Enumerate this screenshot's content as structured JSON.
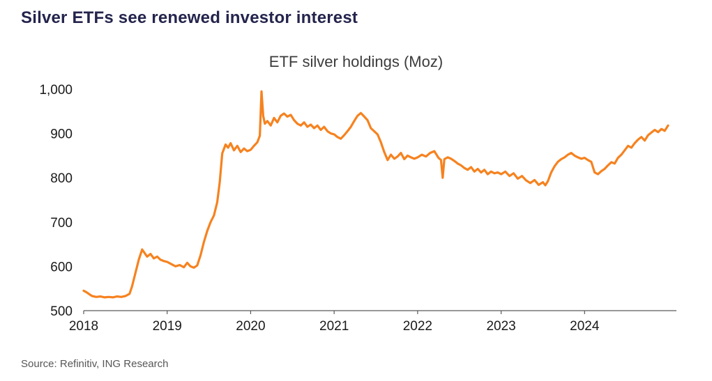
{
  "page": {
    "title": "Silver ETFs see renewed investor interest",
    "source": "Source: Refinitiv, ING Research"
  },
  "chart_data": {
    "type": "line",
    "title": "ETF silver holdings (Moz)",
    "xlabel": "",
    "ylabel": "",
    "xlim": [
      2018,
      2025.1
    ],
    "ylim": [
      500,
      1000
    ],
    "x_ticks": [
      2018,
      2019,
      2020,
      2021,
      2022,
      2023,
      2024
    ],
    "y_ticks": [
      500,
      600,
      700,
      800,
      900,
      1000
    ],
    "grid": false,
    "legend": false,
    "line_color": "#f6821f",
    "axis_color": "#595959",
    "series": [
      {
        "name": "ETF silver holdings (Moz)",
        "points": [
          [
            2018.0,
            545
          ],
          [
            2018.03,
            542
          ],
          [
            2018.06,
            538
          ],
          [
            2018.1,
            533
          ],
          [
            2018.15,
            531
          ],
          [
            2018.2,
            532
          ],
          [
            2018.25,
            530
          ],
          [
            2018.3,
            531
          ],
          [
            2018.35,
            530
          ],
          [
            2018.4,
            532
          ],
          [
            2018.45,
            531
          ],
          [
            2018.5,
            533
          ],
          [
            2018.55,
            538
          ],
          [
            2018.58,
            555
          ],
          [
            2018.62,
            585
          ],
          [
            2018.66,
            615
          ],
          [
            2018.7,
            638
          ],
          [
            2018.73,
            630
          ],
          [
            2018.76,
            622
          ],
          [
            2018.8,
            628
          ],
          [
            2018.84,
            618
          ],
          [
            2018.88,
            622
          ],
          [
            2018.92,
            615
          ],
          [
            2018.96,
            612
          ],
          [
            2019.0,
            610
          ],
          [
            2019.05,
            605
          ],
          [
            2019.1,
            600
          ],
          [
            2019.15,
            603
          ],
          [
            2019.2,
            598
          ],
          [
            2019.24,
            608
          ],
          [
            2019.28,
            600
          ],
          [
            2019.32,
            597
          ],
          [
            2019.36,
            602
          ],
          [
            2019.4,
            625
          ],
          [
            2019.44,
            655
          ],
          [
            2019.48,
            680
          ],
          [
            2019.52,
            700
          ],
          [
            2019.56,
            715
          ],
          [
            2019.6,
            745
          ],
          [
            2019.63,
            790
          ],
          [
            2019.66,
            855
          ],
          [
            2019.7,
            875
          ],
          [
            2019.73,
            868
          ],
          [
            2019.76,
            878
          ],
          [
            2019.8,
            862
          ],
          [
            2019.84,
            872
          ],
          [
            2019.88,
            858
          ],
          [
            2019.92,
            866
          ],
          [
            2019.96,
            860
          ],
          [
            2020.0,
            863
          ],
          [
            2020.04,
            872
          ],
          [
            2020.08,
            880
          ],
          [
            2020.11,
            895
          ],
          [
            2020.13,
            995
          ],
          [
            2020.15,
            940
          ],
          [
            2020.17,
            922
          ],
          [
            2020.2,
            928
          ],
          [
            2020.24,
            918
          ],
          [
            2020.28,
            935
          ],
          [
            2020.32,
            925
          ],
          [
            2020.36,
            940
          ],
          [
            2020.4,
            945
          ],
          [
            2020.44,
            938
          ],
          [
            2020.48,
            942
          ],
          [
            2020.52,
            930
          ],
          [
            2020.56,
            922
          ],
          [
            2020.6,
            918
          ],
          [
            2020.64,
            925
          ],
          [
            2020.68,
            915
          ],
          [
            2020.72,
            920
          ],
          [
            2020.76,
            912
          ],
          [
            2020.8,
            918
          ],
          [
            2020.84,
            908
          ],
          [
            2020.88,
            915
          ],
          [
            2020.92,
            905
          ],
          [
            2020.96,
            900
          ],
          [
            2021.0,
            898
          ],
          [
            2021.04,
            892
          ],
          [
            2021.08,
            888
          ],
          [
            2021.12,
            896
          ],
          [
            2021.16,
            905
          ],
          [
            2021.2,
            915
          ],
          [
            2021.24,
            928
          ],
          [
            2021.28,
            940
          ],
          [
            2021.32,
            946
          ],
          [
            2021.36,
            938
          ],
          [
            2021.4,
            930
          ],
          [
            2021.44,
            912
          ],
          [
            2021.48,
            905
          ],
          [
            2021.52,
            898
          ],
          [
            2021.56,
            880
          ],
          [
            2021.6,
            858
          ],
          [
            2021.64,
            840
          ],
          [
            2021.68,
            852
          ],
          [
            2021.72,
            843
          ],
          [
            2021.76,
            848
          ],
          [
            2021.8,
            856
          ],
          [
            2021.84,
            842
          ],
          [
            2021.88,
            850
          ],
          [
            2021.92,
            846
          ],
          [
            2021.96,
            843
          ],
          [
            2022.0,
            846
          ],
          [
            2022.05,
            852
          ],
          [
            2022.1,
            848
          ],
          [
            2022.15,
            856
          ],
          [
            2022.2,
            860
          ],
          [
            2022.25,
            845
          ],
          [
            2022.28,
            840
          ],
          [
            2022.3,
            800
          ],
          [
            2022.32,
            842
          ],
          [
            2022.36,
            846
          ],
          [
            2022.4,
            843
          ],
          [
            2022.44,
            838
          ],
          [
            2022.48,
            832
          ],
          [
            2022.52,
            828
          ],
          [
            2022.56,
            822
          ],
          [
            2022.6,
            818
          ],
          [
            2022.64,
            824
          ],
          [
            2022.68,
            814
          ],
          [
            2022.72,
            820
          ],
          [
            2022.76,
            812
          ],
          [
            2022.8,
            818
          ],
          [
            2022.84,
            808
          ],
          [
            2022.88,
            814
          ],
          [
            2022.92,
            810
          ],
          [
            2022.96,
            812
          ],
          [
            2023.0,
            808
          ],
          [
            2023.05,
            814
          ],
          [
            2023.1,
            804
          ],
          [
            2023.15,
            810
          ],
          [
            2023.2,
            798
          ],
          [
            2023.25,
            804
          ],
          [
            2023.3,
            794
          ],
          [
            2023.35,
            788
          ],
          [
            2023.4,
            795
          ],
          [
            2023.45,
            784
          ],
          [
            2023.5,
            790
          ],
          [
            2023.53,
            783
          ],
          [
            2023.56,
            792
          ],
          [
            2023.6,
            812
          ],
          [
            2023.64,
            826
          ],
          [
            2023.68,
            836
          ],
          [
            2023.72,
            842
          ],
          [
            2023.76,
            846
          ],
          [
            2023.8,
            852
          ],
          [
            2023.84,
            856
          ],
          [
            2023.88,
            850
          ],
          [
            2023.92,
            846
          ],
          [
            2023.96,
            843
          ],
          [
            2024.0,
            845
          ],
          [
            2024.04,
            840
          ],
          [
            2024.08,
            836
          ],
          [
            2024.12,
            812
          ],
          [
            2024.16,
            808
          ],
          [
            2024.2,
            815
          ],
          [
            2024.24,
            820
          ],
          [
            2024.28,
            828
          ],
          [
            2024.32,
            835
          ],
          [
            2024.36,
            832
          ],
          [
            2024.4,
            845
          ],
          [
            2024.44,
            852
          ],
          [
            2024.48,
            862
          ],
          [
            2024.52,
            872
          ],
          [
            2024.56,
            868
          ],
          [
            2024.6,
            878
          ],
          [
            2024.64,
            886
          ],
          [
            2024.68,
            892
          ],
          [
            2024.72,
            884
          ],
          [
            2024.76,
            896
          ],
          [
            2024.8,
            902
          ],
          [
            2024.84,
            908
          ],
          [
            2024.88,
            903
          ],
          [
            2024.92,
            910
          ],
          [
            2024.96,
            906
          ],
          [
            2025.0,
            918
          ]
        ]
      }
    ]
  }
}
